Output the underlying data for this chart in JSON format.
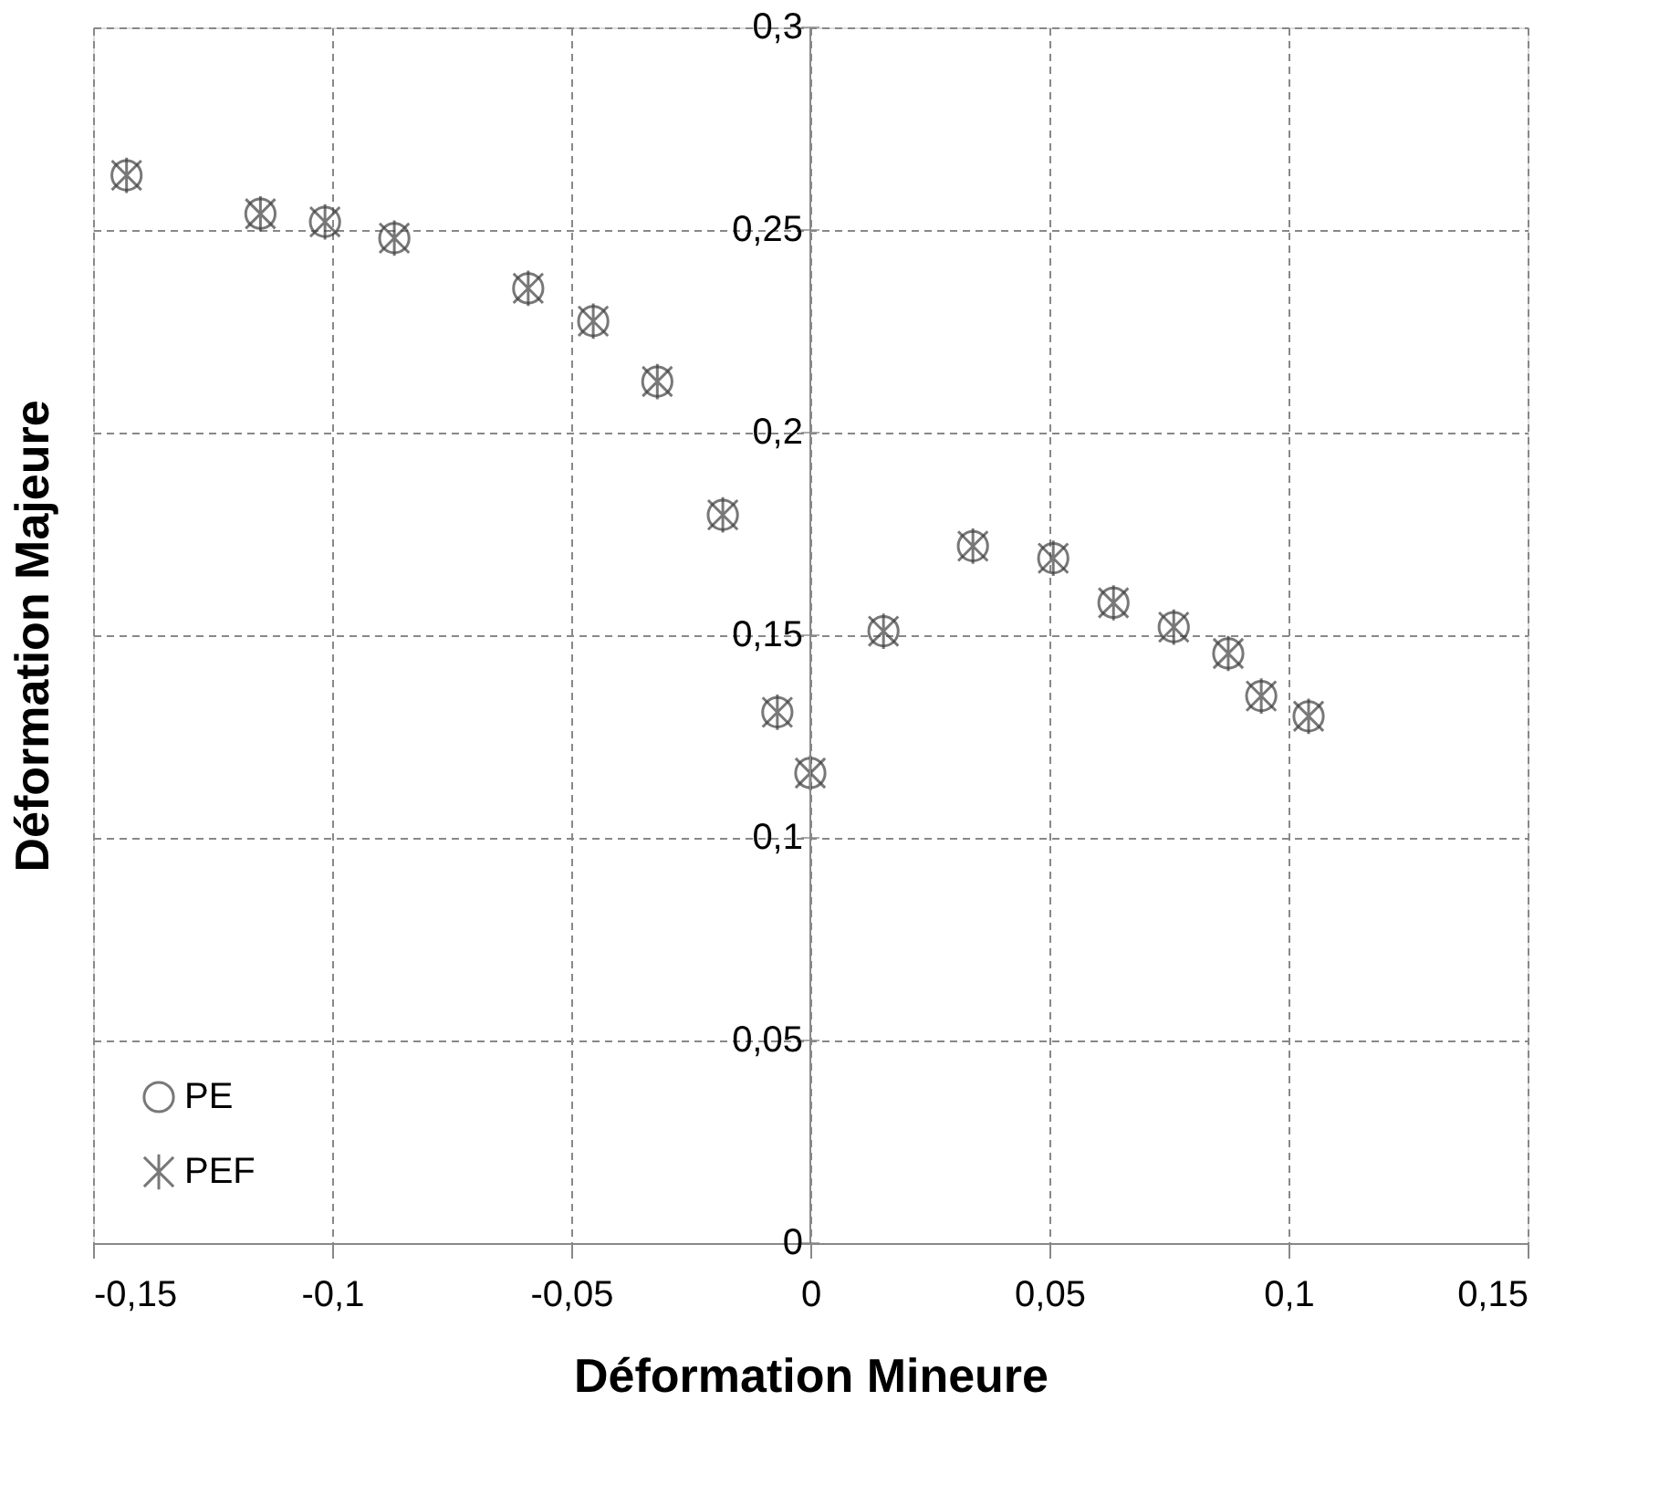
{
  "chart_data": {
    "type": "scatter",
    "xlabel": "Déformation Mineure",
    "ylabel": "Déformation Majeure",
    "x": [
      -0.143,
      -0.115,
      -0.1015,
      -0.087,
      -0.059,
      -0.0454,
      -0.032,
      -0.0183,
      -0.0069,
      0,
      0.0153,
      0.034,
      0.0508,
      0.0634,
      0.076,
      0.0874,
      0.0943,
      0.1042
    ],
    "series": [
      {
        "name": "PE",
        "color": "#404040",
        "marker": "circle",
        "values": [
          0.2635,
          0.254,
          0.252,
          0.248,
          0.2356,
          0.2275,
          0.2126,
          0.1797,
          0.131,
          0.116,
          0.151,
          0.172,
          0.169,
          0.158,
          0.152,
          0.1455,
          0.135,
          0.13
        ]
      },
      {
        "name": "PEF",
        "color": "#404040",
        "marker": "cross",
        "values": [
          0.2635,
          0.254,
          0.252,
          0.248,
          0.2356,
          0.2275,
          0.2126,
          0.1797,
          0.131,
          0.116,
          0.151,
          0.172,
          0.169,
          0.158,
          0.152,
          0.1455,
          0.135,
          0.13
        ]
      }
    ],
    "xlim": [
      -0.15,
      0.15
    ],
    "xticks": [
      {
        "value": -0.15,
        "label": "-0,15"
      },
      {
        "value": -0.1,
        "label": "-0,1"
      },
      {
        "value": -0.05,
        "label": "-0,05"
      },
      {
        "value": 0,
        "label": "0"
      },
      {
        "value": 0.05,
        "label": "0,05"
      },
      {
        "value": 0.1,
        "label": "0,1"
      },
      {
        "value": 0.15,
        "label": "0,15"
      }
    ],
    "ylim": [
      0,
      0.3
    ],
    "yticks": [
      {
        "value": 0,
        "label": "0"
      },
      {
        "value": 0.05,
        "label": "0,05"
      },
      {
        "value": 0.1,
        "label": "0,1"
      },
      {
        "value": 0.15,
        "label": "0,15"
      },
      {
        "value": 0.2,
        "label": "0,2"
      },
      {
        "value": 0.25,
        "label": "0,25"
      },
      {
        "value": 0.3,
        "label": "0,3"
      }
    ],
    "grid": true,
    "legend": "bottom left"
  }
}
